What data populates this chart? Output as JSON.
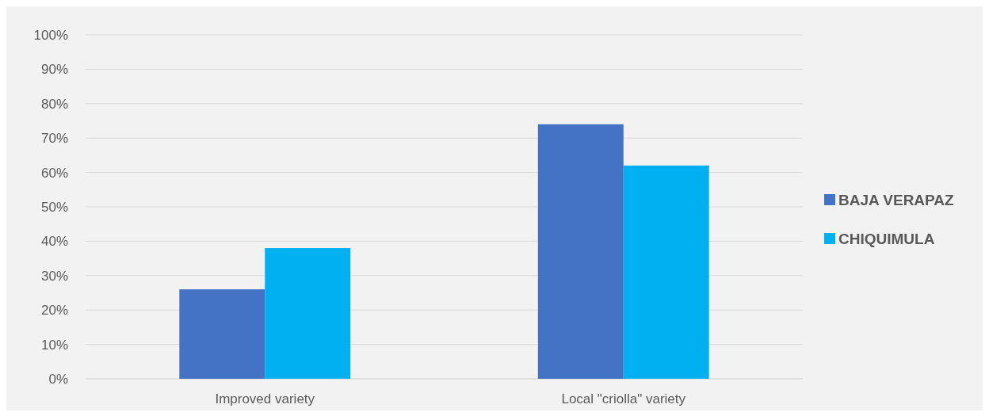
{
  "chart_data": {
    "type": "bar",
    "categories": [
      "Improved variety",
      "Local \"criolla\" variety"
    ],
    "series": [
      {
        "name": "BAJA VERAPAZ",
        "color": "#4472c4",
        "values": [
          26,
          74
        ]
      },
      {
        "name": "CHIQUIMULA",
        "color": "#00b0f0",
        "values": [
          38,
          62
        ]
      }
    ],
    "ylim": [
      0,
      100
    ],
    "yticks": [
      {
        "value": 0,
        "label": "0%"
      },
      {
        "value": 10,
        "label": "10%"
      },
      {
        "value": 20,
        "label": "20%"
      },
      {
        "value": 30,
        "label": "30%"
      },
      {
        "value": 40,
        "label": "40%"
      },
      {
        "value": 50,
        "label": "50%"
      },
      {
        "value": 60,
        "label": "60%"
      },
      {
        "value": 70,
        "label": "70%"
      },
      {
        "value": 80,
        "label": "80%"
      },
      {
        "value": 90,
        "label": "90%"
      },
      {
        "value": 100,
        "label": "100%"
      }
    ],
    "grid": "y",
    "legend": "right"
  }
}
